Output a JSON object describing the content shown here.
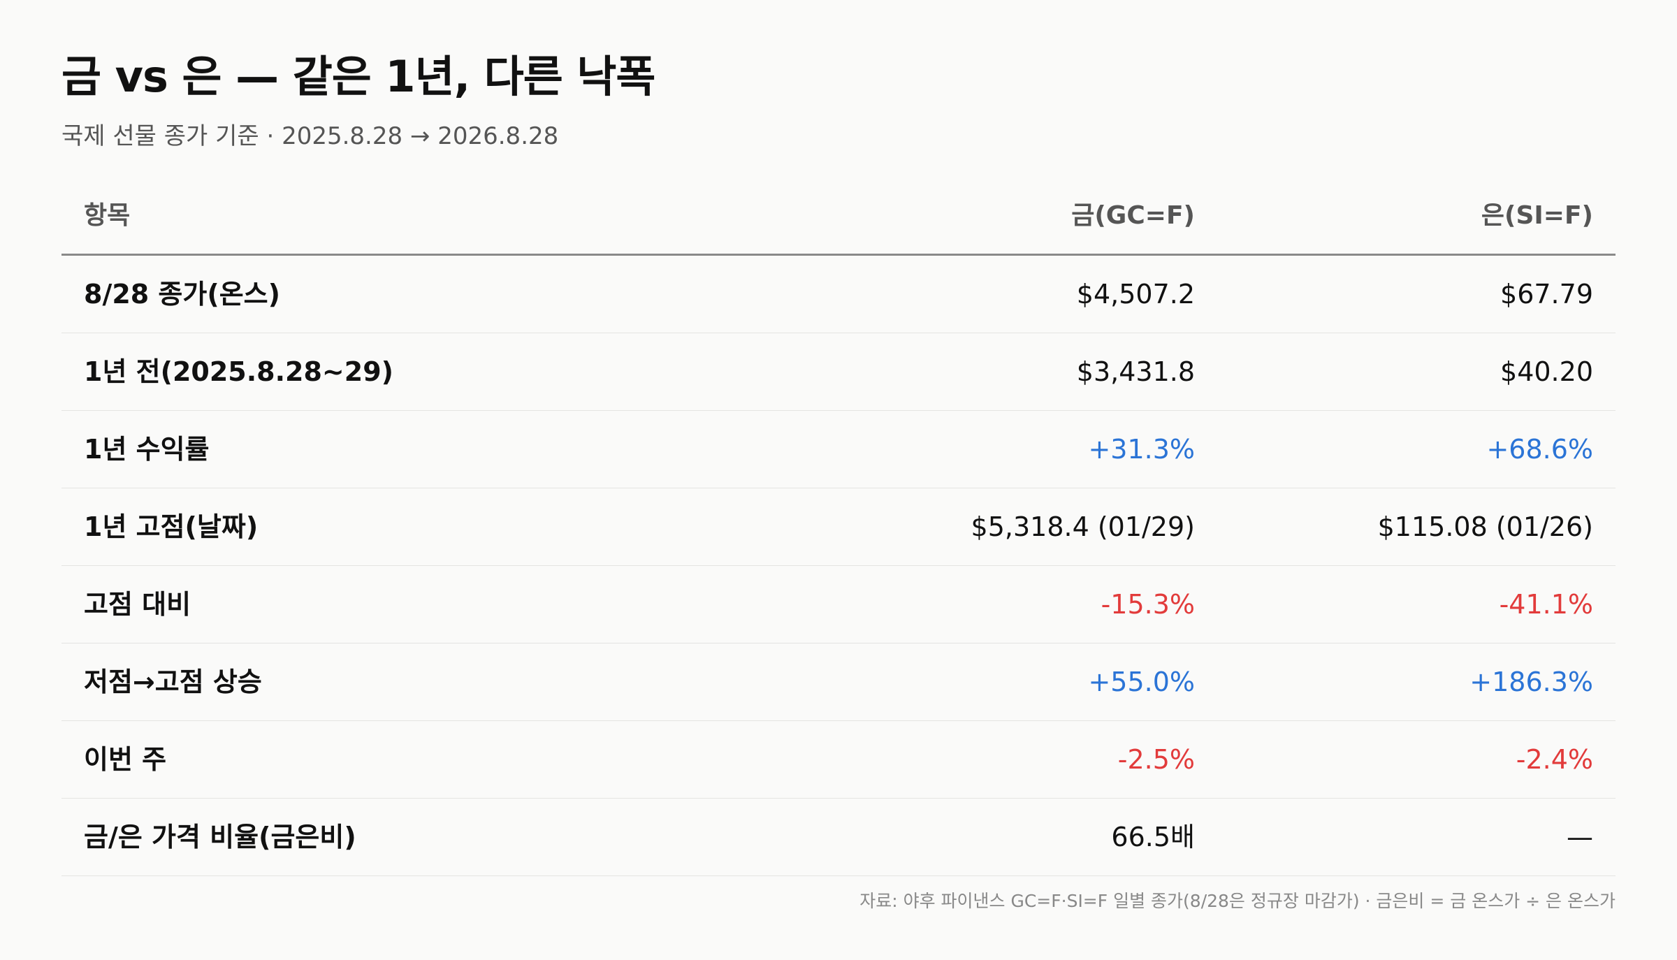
{
  "title": "금 vs 은 — 같은 1년, 다른 낙폭",
  "subtitle": "국제 선물 종가 기준 · 2025.8.28 → 2026.8.28",
  "table": {
    "headers": [
      "항목",
      "금(GC=F)",
      "은(SI=F)"
    ],
    "rows": [
      [
        "8/28 종가(온스)",
        "$4,507.2",
        "$67.79"
      ],
      [
        "1년 전(2025.8.28~29)",
        "$3,431.8",
        "$40.20"
      ],
      [
        "1년 수익률",
        "+31.3%",
        "+68.6%"
      ],
      [
        "1년 고점(날짜)",
        "$5,318.4 (01/29)",
        "$115.08 (01/26)"
      ],
      [
        "고점 대비",
        "-15.3%",
        "-41.1%"
      ],
      [
        "저점→고점 상승",
        "+55.0%",
        "+186.3%"
      ],
      [
        "이번 주",
        "-2.5%",
        "-2.4%"
      ],
      [
        "금/은 가격 비율(금은비)",
        "66.5배",
        "—"
      ]
    ]
  },
  "source": "자료: 야후 파이낸스 GC=F·SI=F 일별 종가(8/28은 정규장 마감가) · 금은비 = 금 온스가 ÷ 은 온스가",
  "colors": {
    "positive": "#2b74d6",
    "negative": "#e23b3b"
  }
}
